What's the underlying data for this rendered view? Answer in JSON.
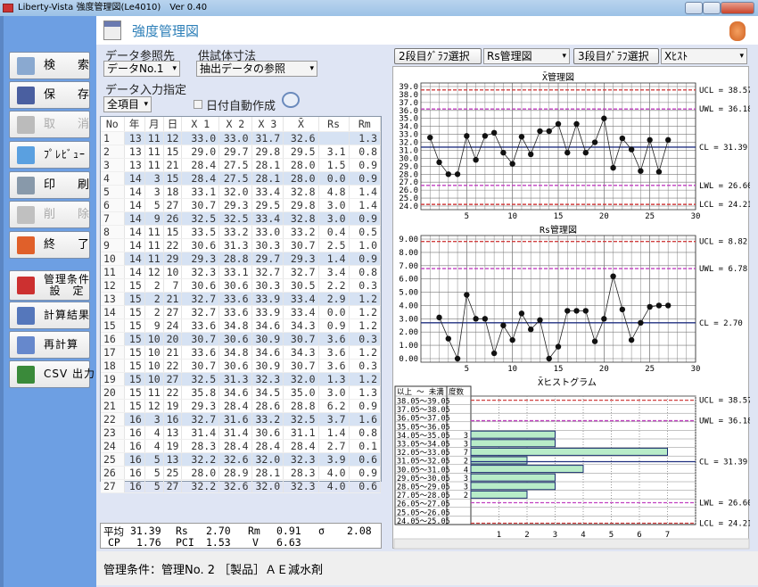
{
  "window": {
    "title": "Liberty-Vista 強度管理図(Le4010)　Ver 0.40"
  },
  "sidebar": {
    "items": [
      {
        "label": "検　索",
        "icon": "search-folder-icon",
        "enabled": true,
        "color": "#8aa9d0"
      },
      {
        "label": "保　存",
        "icon": "save-disk-icon",
        "enabled": true,
        "color": "#4a5fa0"
      },
      {
        "label": "取　消",
        "icon": "undo-arrow-icon",
        "enabled": false,
        "color": "#bbbbbb"
      },
      {
        "label": "ﾌﾟﾚﾋﾞｭｰ",
        "icon": "preview-magnifier-icon",
        "enabled": true,
        "color": "#5aa0e0"
      },
      {
        "label": "印　刷",
        "icon": "printer-icon",
        "enabled": true,
        "color": "#8899aa"
      },
      {
        "label": "削　除",
        "icon": "trash-icon",
        "enabled": false,
        "color": "#c0c0c0"
      },
      {
        "label": "終　了",
        "icon": "exit-power-icon",
        "enabled": true,
        "color": "#e0602a"
      },
      {
        "label": "管理条件\n設　定",
        "icon": "toolbox-icon",
        "enabled": true,
        "color": "#cc3030"
      },
      {
        "label": "計算結果",
        "icon": "spreadsheet-icon",
        "enabled": true,
        "color": "#5577bb"
      },
      {
        "label": "再計算",
        "icon": "calculator-icon",
        "enabled": true,
        "color": "#6688cc"
      },
      {
        "label": "CSV 出力",
        "icon": "excel-csv-icon",
        "enabled": true,
        "color": "#3a8a3a"
      }
    ]
  },
  "header": {
    "title": "強度管理図"
  },
  "controls": {
    "data_ref_label": "データ参照先",
    "data_ref_value": "データNo.1",
    "specimen_label": "供試体寸法",
    "specimen_value": "抽出データの参照",
    "input_label": "データ入力指定",
    "input_value": "全項目",
    "auto_date_label": "日付自動作成",
    "auto_date_checked": false
  },
  "graph_select": {
    "second_button": "2段目ｸﾞﾗﾌ選択",
    "second_value": "Rs管理図",
    "third_button": "3段目ｸﾞﾗﾌ選択",
    "third_value": "Xﾋｽﾄ"
  },
  "table": {
    "columns": [
      "No",
      "年",
      "月",
      "日",
      "X 1",
      "X 2",
      "X 3",
      "X̄",
      "Rs",
      "Rm"
    ],
    "rows": [
      [
        "1",
        "13",
        "11",
        "12",
        "33.0",
        "33.0",
        "31.7",
        "32.6",
        "",
        "1.3"
      ],
      [
        "2",
        "13",
        "11",
        "15",
        "29.0",
        "29.7",
        "29.8",
        "29.5",
        "3.1",
        "0.8"
      ],
      [
        "3",
        "13",
        "11",
        "21",
        "28.4",
        "27.5",
        "28.1",
        "28.0",
        "1.5",
        "0.9"
      ],
      [
        "4",
        "14",
        "3",
        "15",
        "28.4",
        "27.5",
        "28.1",
        "28.0",
        "0.0",
        "0.9"
      ],
      [
        "5",
        "14",
        "3",
        "18",
        "33.1",
        "32.0",
        "33.4",
        "32.8",
        "4.8",
        "1.4"
      ],
      [
        "6",
        "14",
        "5",
        "27",
        "30.7",
        "29.3",
        "29.5",
        "29.8",
        "3.0",
        "1.4"
      ],
      [
        "7",
        "14",
        "9",
        "26",
        "32.5",
        "32.5",
        "33.4",
        "32.8",
        "3.0",
        "0.9"
      ],
      [
        "8",
        "14",
        "11",
        "15",
        "33.5",
        "33.2",
        "33.0",
        "33.2",
        "0.4",
        "0.5"
      ],
      [
        "9",
        "14",
        "11",
        "22",
        "30.6",
        "31.3",
        "30.3",
        "30.7",
        "2.5",
        "1.0"
      ],
      [
        "10",
        "14",
        "11",
        "29",
        "29.3",
        "28.8",
        "29.7",
        "29.3",
        "1.4",
        "0.9"
      ],
      [
        "11",
        "14",
        "12",
        "10",
        "32.3",
        "33.1",
        "32.7",
        "32.7",
        "3.4",
        "0.8"
      ],
      [
        "12",
        "15",
        "2",
        "7",
        "30.6",
        "30.6",
        "30.3",
        "30.5",
        "2.2",
        "0.3"
      ],
      [
        "13",
        "15",
        "2",
        "21",
        "32.7",
        "33.6",
        "33.9",
        "33.4",
        "2.9",
        "1.2"
      ],
      [
        "14",
        "15",
        "2",
        "27",
        "32.7",
        "33.6",
        "33.9",
        "33.4",
        "0.0",
        "1.2"
      ],
      [
        "15",
        "15",
        "9",
        "24",
        "33.6",
        "34.8",
        "34.6",
        "34.3",
        "0.9",
        "1.2"
      ],
      [
        "16",
        "15",
        "10",
        "20",
        "30.7",
        "30.6",
        "30.9",
        "30.7",
        "3.6",
        "0.3"
      ],
      [
        "17",
        "15",
        "10",
        "21",
        "33.6",
        "34.8",
        "34.6",
        "34.3",
        "3.6",
        "1.2"
      ],
      [
        "18",
        "15",
        "10",
        "22",
        "30.7",
        "30.6",
        "30.9",
        "30.7",
        "3.6",
        "0.3"
      ],
      [
        "19",
        "15",
        "10",
        "27",
        "32.5",
        "31.3",
        "32.3",
        "32.0",
        "1.3",
        "1.2"
      ],
      [
        "20",
        "15",
        "11",
        "22",
        "35.8",
        "34.6",
        "34.5",
        "35.0",
        "3.0",
        "1.3"
      ],
      [
        "21",
        "15",
        "12",
        "19",
        "29.3",
        "28.4",
        "28.6",
        "28.8",
        "6.2",
        "0.9"
      ],
      [
        "22",
        "16",
        "3",
        "16",
        "32.7",
        "31.6",
        "33.2",
        "32.5",
        "3.7",
        "1.6"
      ],
      [
        "23",
        "16",
        "4",
        "13",
        "31.4",
        "31.4",
        "30.6",
        "31.1",
        "1.4",
        "0.8"
      ],
      [
        "24",
        "16",
        "4",
        "19",
        "28.3",
        "28.4",
        "28.4",
        "28.4",
        "2.7",
        "0.1"
      ],
      [
        "25",
        "16",
        "5",
        "13",
        "32.2",
        "32.6",
        "32.0",
        "32.3",
        "3.9",
        "0.6"
      ],
      [
        "26",
        "16",
        "5",
        "25",
        "28.0",
        "28.9",
        "28.1",
        "28.3",
        "4.0",
        "0.9"
      ],
      [
        "27",
        "16",
        "5",
        "27",
        "32.2",
        "32.6",
        "32.0",
        "32.3",
        "4.0",
        "0.6"
      ]
    ]
  },
  "stats": {
    "mean_label": "平均",
    "mean": "31.39",
    "rs_label": "Rs",
    "rs": "2.70",
    "rm_label": "Rm",
    "rm": "0.91",
    "sigma_label": "σ",
    "sigma": "2.08",
    "cp_label": "CP",
    "cp": "1.76",
    "pci_label": "PCI",
    "pci": "1.53",
    "v_label": "V",
    "v": "6.63"
  },
  "footer": {
    "condition": "管理条件：管理No. 2 ［製品］ＡＥ減水剤"
  },
  "chart_data": [
    {
      "type": "line",
      "title": "X̄管理図",
      "ylim": [
        24,
        39
      ],
      "xlim": [
        0,
        30
      ],
      "x_ticks": [
        5,
        10,
        15,
        20,
        25,
        30
      ],
      "grid": true,
      "x": [
        1,
        2,
        3,
        4,
        5,
        6,
        7,
        8,
        9,
        10,
        11,
        12,
        13,
        14,
        15,
        16,
        17,
        18,
        19,
        20,
        21,
        22,
        23,
        24,
        25,
        26,
        27
      ],
      "values": [
        32.6,
        29.5,
        28.0,
        28.0,
        32.8,
        29.8,
        32.8,
        33.2,
        30.7,
        29.3,
        32.7,
        30.5,
        33.4,
        33.4,
        34.3,
        30.7,
        34.3,
        30.7,
        32.0,
        35.0,
        28.8,
        32.5,
        31.1,
        28.4,
        32.3,
        28.3,
        32.3
      ],
      "limits": [
        {
          "label": "UCL = 38.57",
          "value": 38.57,
          "color": "#d04040"
        },
        {
          "label": "UWL = 36.18",
          "value": 36.18,
          "color": "#c040c0"
        },
        {
          "label": "CL = 31.39",
          "value": 31.39,
          "color": "#203080"
        },
        {
          "label": "LWL = 26.60",
          "value": 26.6,
          "color": "#c040c0"
        },
        {
          "label": "LCL = 24.21",
          "value": 24.21,
          "color": "#d04040"
        }
      ]
    },
    {
      "type": "line",
      "title": "Rs管理図",
      "ylim": [
        0,
        9
      ],
      "xlim": [
        0,
        30
      ],
      "x_ticks": [
        5,
        10,
        15,
        20,
        25,
        30
      ],
      "grid": true,
      "x": [
        2,
        3,
        4,
        5,
        6,
        7,
        8,
        9,
        10,
        11,
        12,
        13,
        14,
        15,
        16,
        17,
        18,
        19,
        20,
        21,
        22,
        23,
        24,
        25,
        26,
        27
      ],
      "values": [
        3.1,
        1.5,
        0.0,
        4.8,
        3.0,
        3.0,
        0.4,
        2.5,
        1.4,
        3.4,
        2.2,
        2.9,
        0.0,
        0.9,
        3.6,
        3.6,
        3.6,
        1.3,
        3.0,
        6.2,
        3.7,
        1.4,
        2.7,
        3.9,
        4.0,
        4.0
      ],
      "limits": [
        {
          "label": "UCL = 8.82",
          "value": 8.82,
          "color": "#d04040"
        },
        {
          "label": "UWL = 6.78",
          "value": 6.78,
          "color": "#c040c0"
        },
        {
          "label": "CL = 2.70",
          "value": 2.7,
          "color": "#203080"
        }
      ]
    },
    {
      "type": "bar",
      "title": "X̄ヒストグラム",
      "range_header": "以上 ～ 未満",
      "count_header": "度数",
      "x_ticks": [
        1,
        2,
        3,
        4,
        5,
        6,
        7
      ],
      "bar_color": "#b8ecc8",
      "categories": [
        "38.05～39.05",
        "37.05～38.05",
        "36.05～37.05",
        "35.05～36.05",
        "34.05～35.05",
        "33.05～34.05",
        "32.05～33.05",
        "31.05～32.05",
        "30.05～31.05",
        "29.05～30.05",
        "28.05～29.05",
        "27.05～28.05",
        "26.05～27.05",
        "25.05～26.05",
        "24.05～25.05"
      ],
      "values": [
        0,
        0,
        0,
        0,
        3,
        3,
        7,
        2,
        4,
        3,
        3,
        2,
        0,
        0,
        0
      ],
      "limits": [
        {
          "label": "UCL = 38.57",
          "value": 38.57,
          "color": "#d04040"
        },
        {
          "label": "UWL = 36.18",
          "value": 36.18,
          "color": "#c040c0"
        },
        {
          "label": "CL = 31.39",
          "value": 31.39,
          "color": "#203080"
        },
        {
          "label": "LWL = 26.60",
          "value": 26.6,
          "color": "#c040c0"
        },
        {
          "label": "LCL = 24.21",
          "value": 24.21,
          "color": "#d04040"
        }
      ]
    }
  ]
}
